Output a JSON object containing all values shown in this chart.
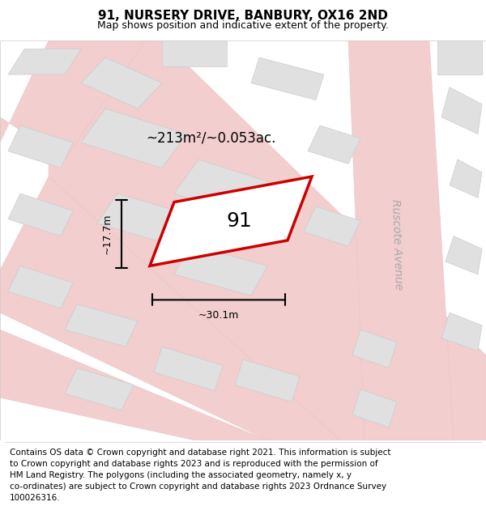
{
  "title": "91, NURSERY DRIVE, BANBURY, OX16 2ND",
  "subtitle": "Map shows position and indicative extent of the property.",
  "area_label": "~213m²/~0.053ac.",
  "width_label": "~30.1m",
  "height_label": "~17.7m",
  "plot_number": "91",
  "map_bg": "#f5f5f5",
  "road_color": "#f2cece",
  "road_edge": "#e8c0c0",
  "block_color": "#e0e0e0",
  "block_edge_color": "#cccccc",
  "plot_edge_color": "#cc0000",
  "plot_lw": 2.5,
  "road_label": "Ruscote Avenue",
  "title_fontsize": 11,
  "subtitle_fontsize": 9,
  "footer_fontsize": 7.5,
  "footer_lines": [
    "Contains OS data © Crown copyright and database right 2021. This information is subject",
    "to Crown copyright and database rights 2023 and is reproduced with the permission of",
    "HM Land Registry. The polygons (including the associated geometry, namely x, y",
    "co-ordinates) are subject to Crown copyright and database rights 2023 Ordnance Survey",
    "100026316."
  ]
}
